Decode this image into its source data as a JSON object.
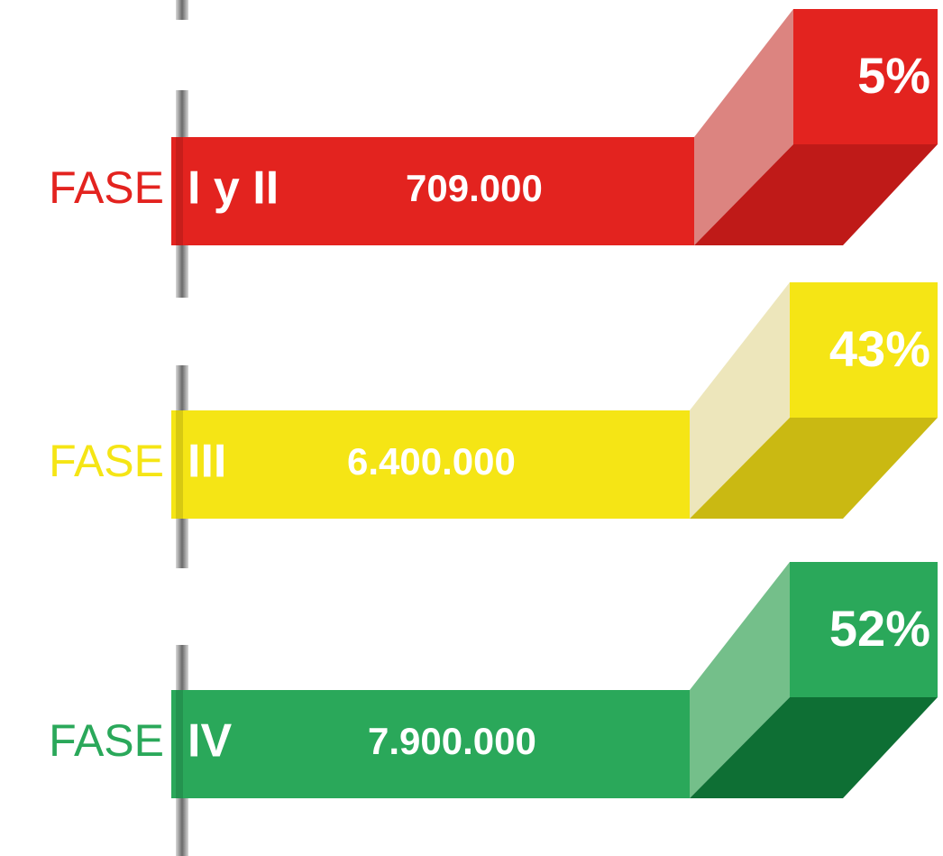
{
  "rows": [
    {
      "label": "FASE",
      "phase": "I y II",
      "value": "709.000",
      "percent": "5%"
    },
    {
      "label": "FASE",
      "phase": "III",
      "value": "6.400.000",
      "percent": "43%"
    },
    {
      "label": "FASE",
      "phase": "IV",
      "value": "7.900.000",
      "percent": "52%"
    }
  ]
}
